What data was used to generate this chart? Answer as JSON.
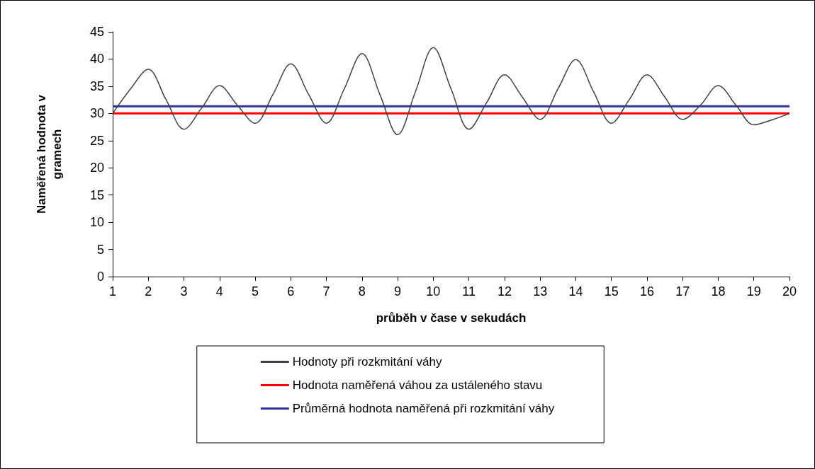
{
  "chart_data": {
    "type": "line",
    "xlabel": "průběh v čase v sekudách",
    "ylabel": "Naměřená hodnota v gramech",
    "xlim": [
      1,
      20
    ],
    "xticks": [
      1,
      2,
      3,
      4,
      5,
      6,
      7,
      8,
      9,
      10,
      11,
      12,
      13,
      14,
      15,
      16,
      17,
      18,
      19,
      20
    ],
    "ylim": [
      0,
      45
    ],
    "yticks": [
      0,
      5,
      10,
      15,
      20,
      25,
      30,
      35,
      40,
      45
    ],
    "grid": false,
    "legend": "bottom",
    "marker": "none",
    "line_style": "solid",
    "series": [
      {
        "name": "Hodnoty při rozkmitání váhy",
        "color": "#404040",
        "x": [
          1,
          1.5,
          2,
          2.5,
          3,
          3.5,
          4,
          4.5,
          5,
          5.5,
          6,
          6.5,
          7,
          7.5,
          8,
          8.5,
          9,
          9.5,
          10,
          10.5,
          11,
          11.5,
          12,
          12.5,
          13,
          13.5,
          14,
          14.5,
          15,
          15.5,
          16,
          16.5,
          17,
          17.5,
          18,
          18.5,
          19,
          19.5,
          20
        ],
        "values": [
          30,
          34.5,
          38.1,
          32.5,
          27.1,
          31,
          35.1,
          31.5,
          28.2,
          33.5,
          39.1,
          33.5,
          28.2,
          34.5,
          41,
          33.5,
          26.1,
          34,
          42.1,
          34.5,
          27.1,
          32,
          37.1,
          33,
          28.9,
          34.5,
          39.9,
          34,
          28.2,
          32.5,
          37.1,
          33,
          28.9,
          31.5,
          35.1,
          31.5,
          27.9,
          28.8,
          30
        ]
      },
      {
        "name": "Hodnota naměřená váhou za ustáleného stavu",
        "color": "#ff0000",
        "x": [
          1,
          20
        ],
        "values": [
          30,
          30
        ]
      },
      {
        "name": "Průměrná hodnota naměřená při rozkmitání váhy",
        "color": "#333399",
        "x": [
          1,
          20
        ],
        "values": [
          31.3,
          31.3
        ]
      }
    ]
  }
}
